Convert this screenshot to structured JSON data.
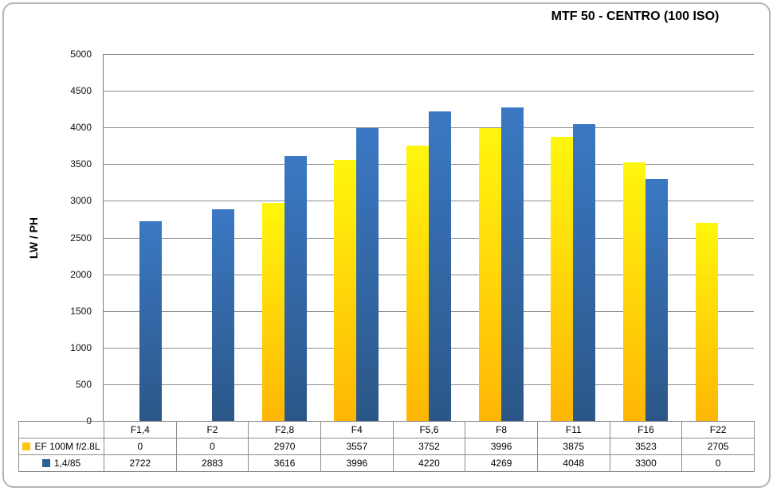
{
  "title": "MTF 50 - CENTRO (100 ISO)",
  "y_axis_title": "LW / PH",
  "colors": {
    "series1_top": "#fff60d",
    "series1_bottom": "#ffb605",
    "series1_legend": "#fec510",
    "series2_top": "#3b78c4",
    "series2_bottom": "#2b5787",
    "series2_legend": "#2e6093",
    "gridline": "#8c8c8c",
    "axis": "#7a7a7a",
    "table_border": "#8c8c8c",
    "frame_border": "#b4b4b4"
  },
  "chart_data": {
    "type": "bar",
    "title": "MTF 50 - CENTRO (100 ISO)",
    "xlabel": "",
    "ylabel": "LW / PH",
    "categories": [
      "F1,4",
      "F2",
      "F2,8",
      "F4",
      "F5,6",
      "F8",
      "F11",
      "F16",
      "F22"
    ],
    "series": [
      {
        "name": "EF 100M f/2.8L",
        "values": [
          0,
          0,
          2970,
          3557,
          3752,
          3996,
          3875,
          3523,
          2705
        ]
      },
      {
        "name": "1,4/85",
        "values": [
          2722,
          2883,
          3616,
          3996,
          4220,
          4269,
          4048,
          3300,
          0
        ]
      }
    ],
    "ylim": [
      0,
      5000
    ],
    "yticks": [
      0,
      500,
      1000,
      1500,
      2000,
      2500,
      3000,
      3500,
      4000,
      4500,
      5000
    ],
    "grid": true,
    "legend_position": "table-left"
  }
}
